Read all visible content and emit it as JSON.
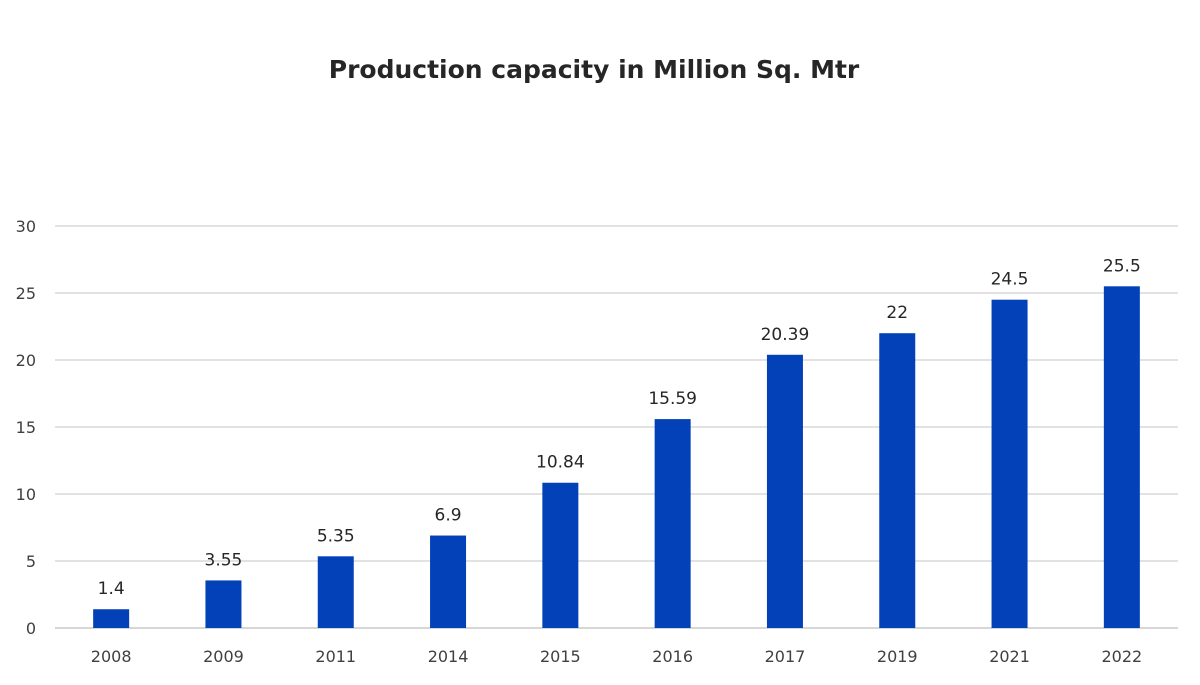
{
  "chart_data": {
    "type": "bar",
    "title": "Production capacity in Million Sq. Mtr",
    "xlabel": "",
    "ylabel": "",
    "categories": [
      "2008",
      "2009",
      "2011",
      "2014",
      "2015",
      "2016",
      "2017",
      "2019",
      "2021",
      "2022"
    ],
    "values": [
      1.4,
      3.55,
      5.35,
      6.9,
      10.84,
      15.59,
      20.39,
      22,
      24.5,
      25.5
    ],
    "data_labels": [
      "1.4",
      "3.55",
      "5.35",
      "6.9",
      "10.84",
      "15.59",
      "20.39",
      "22",
      "24.5",
      "25.5"
    ],
    "ylim": [
      0,
      30
    ],
    "yticks": [
      0,
      5,
      10,
      15,
      20,
      25,
      30
    ],
    "grid": true,
    "legend": "none",
    "bar_color": "#0341B8"
  }
}
